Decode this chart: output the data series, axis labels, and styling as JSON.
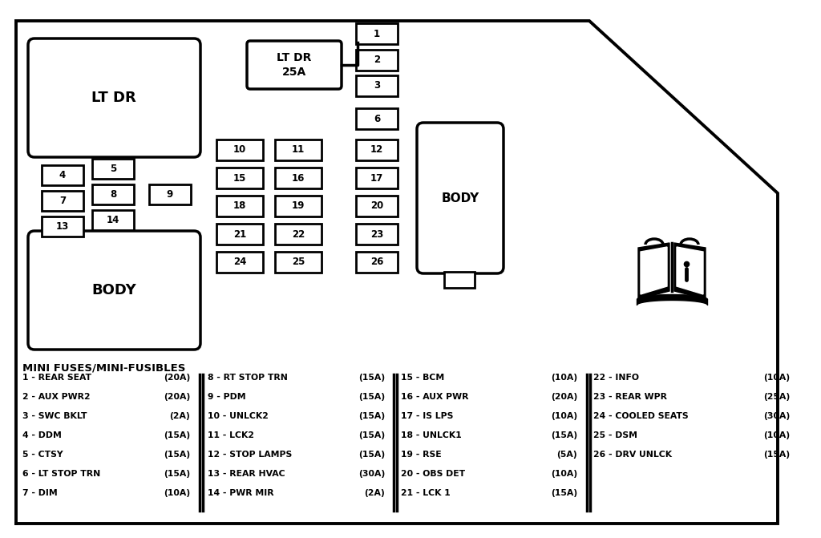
{
  "bg_color": "#ffffff",
  "fuse_legend_title": "MINI FUSES/MINI-FUSIBLES",
  "fuse_legend": [
    [
      "1 - REAR SEAT",
      "(20A)",
      "8 - RT STOP TRN",
      "(15A)",
      "15 - BCM",
      "(10A)",
      "22 - INFO",
      "(10A)"
    ],
    [
      "2 - AUX PWR2",
      "(20A)",
      "9 - PDM",
      "(15A)",
      "16 - AUX PWR",
      "(20A)",
      "23 - REAR WPR",
      "(25A)"
    ],
    [
      "3 - SWC BKLT",
      "(2A)",
      "10 - UNLCK2",
      "(15A)",
      "17 - IS LPS",
      "(10A)",
      "24 - COOLED SEATS",
      "(30A)"
    ],
    [
      "4 - DDM",
      "(15A)",
      "11 - LCK2",
      "(15A)",
      "18 - UNLCK1",
      "(15A)",
      "25 - DSM",
      "(10A)"
    ],
    [
      "5 - CTSY",
      "(15A)",
      "12 - STOP LAMPS",
      "(15A)",
      "19 - RSE",
      "(5A)",
      "26 - DRV UNLCK",
      "(15A)"
    ],
    [
      "6 - LT STOP TRN",
      "(15A)",
      "13 - REAR HVAC",
      "(30A)",
      "20 - OBS DET",
      "(10A)",
      "",
      ""
    ],
    [
      "7 - DIM",
      "(10A)",
      "14 - PWR MIR",
      "(2A)",
      "21 - LCK 1",
      "(15A)",
      "",
      ""
    ]
  ]
}
